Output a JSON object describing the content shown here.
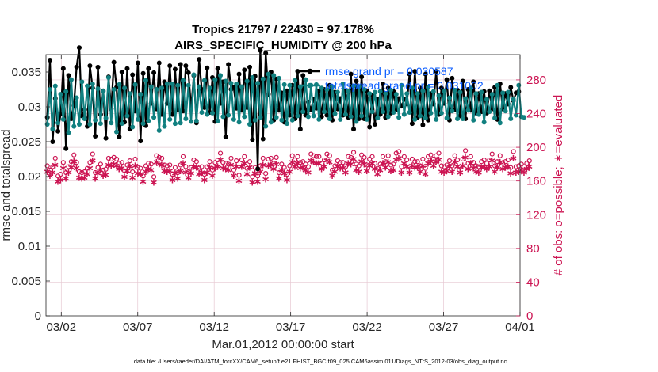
{
  "chart_data": {
    "type": "line",
    "title": "Tropics 21797 / 22430 = 97.178%",
    "subtitle": "AIRS_SPECIFIC_HUMIDITY @ 200 hPa",
    "xlabel": "Mar.01,2012 00:00:00 start",
    "ylabel": "rmse and totalspread",
    "ylabel_right": "# of obs: o=possible; ∗=evaluated",
    "x_ticks": [
      "03/02",
      "03/07",
      "03/12",
      "03/17",
      "03/22",
      "03/27",
      "04/01"
    ],
    "x_tick_days": [
      1,
      6,
      11,
      16,
      21,
      26,
      31
    ],
    "x_range_days": [
      0,
      31
    ],
    "y_ticks": [
      "0",
      "0.005",
      "0.01",
      "0.015",
      "0.02",
      "0.025",
      "0.03",
      "0.035"
    ],
    "ylim": [
      0,
      0.0375
    ],
    "y_right_ticks": [
      "0",
      "40",
      "80",
      "120",
      "160",
      "200",
      "240",
      "280"
    ],
    "ylim_right": [
      0,
      310
    ],
    "grid": true,
    "legend": [
      {
        "label": "rmse grand pr = 0.030587",
        "color": "#000000"
      },
      {
        "label": "totalspread grand pr = 0.031002",
        "color": "#118080"
      }
    ],
    "footnote": "data file: /Users/raeder/DAI/ATM_forcXX/CAM6_setup/f.e21.FHIST_BGC.f09_025.CAM6assim.011/Diags_NTrS_2012-03/obs_diag_output.nc",
    "colors": {
      "rmse": "#000000",
      "spread": "#118080",
      "obs": "#cc1452",
      "grid": "#e6c8d2"
    },
    "series": [
      {
        "name": "rmse",
        "axis": "left",
        "values": [
          0.0285,
          0.0367,
          0.025,
          0.0312,
          0.0265,
          0.029,
          0.0355,
          0.024,
          0.0345,
          0.0283,
          0.0302,
          0.0357,
          0.0385,
          0.0287,
          0.0296,
          0.0272,
          0.0359,
          0.0327,
          0.0258,
          0.0357,
          0.0289,
          0.0323,
          0.0255,
          0.0343,
          0.0297,
          0.0364,
          0.0328,
          0.0257,
          0.035,
          0.0278,
          0.0355,
          0.0268,
          0.0346,
          0.0294,
          0.0363,
          0.0251,
          0.0348,
          0.0273,
          0.0355,
          0.0305,
          0.0349,
          0.0297,
          0.0363,
          0.0289,
          0.0336,
          0.0305,
          0.0359,
          0.0289,
          0.0354,
          0.0295,
          0.0361,
          0.0294,
          0.0359,
          0.0349,
          0.0298,
          0.0345,
          0.0277,
          0.0368,
          0.0325,
          0.0299,
          0.0356,
          0.0292,
          0.0342,
          0.0279,
          0.0355,
          0.0305,
          0.0336,
          0.0257,
          0.0361,
          0.0325,
          0.0328,
          0.0298,
          0.0347,
          0.0295,
          0.0353,
          0.0299,
          0.0357,
          0.0253,
          0.0344,
          0.0211,
          0.0381,
          0.0254,
          0.0377,
          0.0318,
          0.035,
          0.0281,
          0.034,
          0.0295,
          0.032,
          0.0278,
          0.0323,
          0.0288,
          0.0331,
          0.0283,
          0.0351,
          0.0268,
          0.0345,
          0.0288,
          0.0307,
          0.0296,
          0.0311,
          0.0298,
          0.0323,
          0.0286,
          0.0325,
          0.0288,
          0.0331,
          0.0281,
          0.0321,
          0.0297,
          0.0312,
          0.0288,
          0.0323,
          0.0285,
          0.0347,
          0.0268,
          0.0337,
          0.0283,
          0.0343,
          0.0283,
          0.0323,
          0.0271,
          0.0317,
          0.0275,
          0.0311,
          0.0289,
          0.0333,
          0.0285,
          0.0327,
          0.0291,
          0.0322,
          0.0296,
          0.0312,
          0.0301,
          0.0311,
          0.0304,
          0.0347,
          0.0276,
          0.0351,
          0.0285,
          0.0327,
          0.0274,
          0.0347,
          0.0281,
          0.0319,
          0.0304,
          0.0351,
          0.0289,
          0.0327,
          0.0305,
          0.0339,
          0.0281,
          0.0341,
          0.0296,
          0.0324,
          0.0287,
          0.0337,
          0.0283,
          0.0325,
          0.0295,
          0.0336,
          0.0291,
          0.0319,
          0.0293,
          0.0322,
          0.0291,
          0.0323,
          0.0297,
          0.0328,
          0.0282,
          0.0333,
          0.0297,
          0.0319,
          0.0304,
          0.0328,
          0.0309,
          0.032,
          0.0322
        ]
      },
      {
        "name": "totalspread",
        "axis": "left",
        "values": [
          0.0275,
          0.0325,
          0.0268,
          0.033,
          0.0277,
          0.0318,
          0.0282,
          0.0322,
          0.0263,
          0.0339,
          0.0272,
          0.0313,
          0.0275,
          0.0336,
          0.0283,
          0.033,
          0.0275,
          0.0333,
          0.0281,
          0.0326,
          0.0276,
          0.0322,
          0.0284,
          0.0342,
          0.0277,
          0.0325,
          0.0264,
          0.0332,
          0.0276,
          0.0327,
          0.0287,
          0.0319,
          0.0271,
          0.0332,
          0.0282,
          0.0318,
          0.0276,
          0.0338,
          0.028,
          0.0329,
          0.0285,
          0.0325,
          0.0266,
          0.0327,
          0.0272,
          0.0333,
          0.0282,
          0.0333,
          0.0276,
          0.0331,
          0.0277,
          0.0338,
          0.0283,
          0.0331,
          0.0279,
          0.0346,
          0.028,
          0.0329,
          0.0292,
          0.0338,
          0.0289,
          0.0327,
          0.0291,
          0.0339,
          0.028,
          0.0345,
          0.0286,
          0.0337,
          0.0288,
          0.0334,
          0.0282,
          0.0333,
          0.0278,
          0.0329,
          0.0286,
          0.0337,
          0.0275,
          0.0342,
          0.0281,
          0.0334,
          0.0285,
          0.034,
          0.0272,
          0.0347,
          0.0278,
          0.0345,
          0.0285,
          0.0341,
          0.0281,
          0.0332,
          0.0276,
          0.0331,
          0.0281,
          0.0338,
          0.0287,
          0.0329,
          0.0293,
          0.0339,
          0.0286,
          0.0331,
          0.0287,
          0.0332,
          0.0282,
          0.0327,
          0.0293,
          0.0325,
          0.0283,
          0.0329,
          0.029,
          0.0321,
          0.0282,
          0.0333,
          0.0289,
          0.0323,
          0.0286,
          0.033,
          0.0279,
          0.0329,
          0.0287,
          0.0325,
          0.0282,
          0.0319,
          0.0293,
          0.0321,
          0.0284,
          0.0322,
          0.0293,
          0.0319,
          0.0286,
          0.0324,
          0.0292,
          0.0318,
          0.0285,
          0.0331,
          0.0289,
          0.0319,
          0.0292,
          0.0327,
          0.0282,
          0.0319,
          0.0287,
          0.0323,
          0.0284,
          0.0328,
          0.0291,
          0.0322,
          0.0282,
          0.0316,
          0.0291,
          0.0322,
          0.0284,
          0.0313,
          0.0294,
          0.0324,
          0.0283,
          0.0321,
          0.0283,
          0.0312,
          0.0295,
          0.0327,
          0.0281,
          0.0319,
          0.0289,
          0.0321,
          0.0278,
          0.0311,
          0.0293,
          0.0318,
          0.0284,
          0.0331,
          0.0277,
          0.032,
          0.0294,
          0.0321,
          0.0283,
          0.0311,
          0.0288,
          0.0331,
          0.0286,
          0.0285
        ]
      },
      {
        "name": "obs possible",
        "axis": "right",
        "marker": "o",
        "values": [
          178,
          173,
          177,
          187,
          166,
          168,
          182,
          170,
          177,
          183,
          191,
          182,
          171,
          170,
          171,
          175,
          182,
          192,
          170,
          176,
          180,
          173,
          174,
          187,
          186,
          188,
          186,
          181,
          182,
          172,
          179,
          184,
          171,
          186,
          176,
          175,
          166,
          178,
          181,
          180,
          165,
          190,
          188,
          187,
          179,
          178,
          179,
          168,
          176,
          170,
          179,
          189,
          177,
          171,
          176,
          185,
          183,
          175,
          177,
          168,
          177,
          183,
          173,
          182,
          185,
          193,
          182,
          181,
          180,
          187,
          173,
          184,
          167,
          185,
          189,
          175,
          183,
          165,
          176,
          166,
          178,
          187,
          169,
          186,
          187,
          181,
          188,
          170,
          180,
          176,
          168,
          178,
          190,
          185,
          189,
          182,
          183,
          180,
          177,
          192,
          190,
          189,
          189,
          181,
          185,
          192,
          190,
          173,
          178,
          184,
          182,
          182,
          177,
          189,
          188,
          194,
          180,
          178,
          191,
          188,
          179,
          186,
          189,
          181,
          175,
          180,
          189,
          183,
          190,
          179,
          180,
          193,
          195,
          177,
          189,
          185,
          177,
          186,
          183,
          183,
          178,
          186,
          175,
          189,
          191,
          186,
          190,
          193,
          178,
          177,
          179,
          184,
          178,
          190,
          185,
          177,
          186,
          196,
          181,
          189,
          182,
          178,
          177,
          183,
          185,
          181,
          185,
          192,
          178,
          183,
          190,
          181,
          183,
          185,
          176,
          195,
          177,
          178,
          180,
          177,
          181,
          184
        ]
      },
      {
        "name": "obs evaluated",
        "axis": "right",
        "marker": "*",
        "values": [
          172,
          167,
          171,
          180,
          160,
          162,
          176,
          164,
          171,
          177,
          184,
          176,
          165,
          164,
          165,
          169,
          176,
          185,
          164,
          170,
          174,
          167,
          168,
          180,
          179,
          181,
          179,
          175,
          176,
          166,
          173,
          178,
          165,
          179,
          170,
          169,
          160,
          172,
          175,
          174,
          159,
          183,
          181,
          180,
          173,
          172,
          173,
          162,
          170,
          164,
          173,
          182,
          171,
          165,
          170,
          178,
          177,
          169,
          171,
          162,
          171,
          177,
          167,
          176,
          178,
          186,
          176,
          175,
          174,
          180,
          167,
          178,
          161,
          178,
          182,
          169,
          177,
          159,
          170,
          160,
          172,
          180,
          163,
          179,
          180,
          175,
          181,
          164,
          174,
          170,
          162,
          172,
          183,
          178,
          182,
          176,
          177,
          174,
          171,
          185,
          183,
          182,
          182,
          175,
          178,
          185,
          183,
          167,
          172,
          178,
          176,
          176,
          171,
          182,
          181,
          187,
          174,
          172,
          184,
          181,
          173,
          179,
          182,
          175,
          169,
          174,
          182,
          177,
          183,
          173,
          174,
          186,
          188,
          171,
          182,
          178,
          171,
          179,
          177,
          177,
          172,
          179,
          169,
          182,
          184,
          179,
          183,
          186,
          172,
          171,
          173,
          178,
          172,
          183,
          178,
          171,
          179,
          189,
          175,
          182,
          176,
          172,
          171,
          177,
          178,
          175,
          178,
          185,
          172,
          177,
          183,
          175,
          177,
          178,
          170,
          188,
          171,
          172,
          174,
          171,
          175,
          178
        ]
      }
    ]
  }
}
